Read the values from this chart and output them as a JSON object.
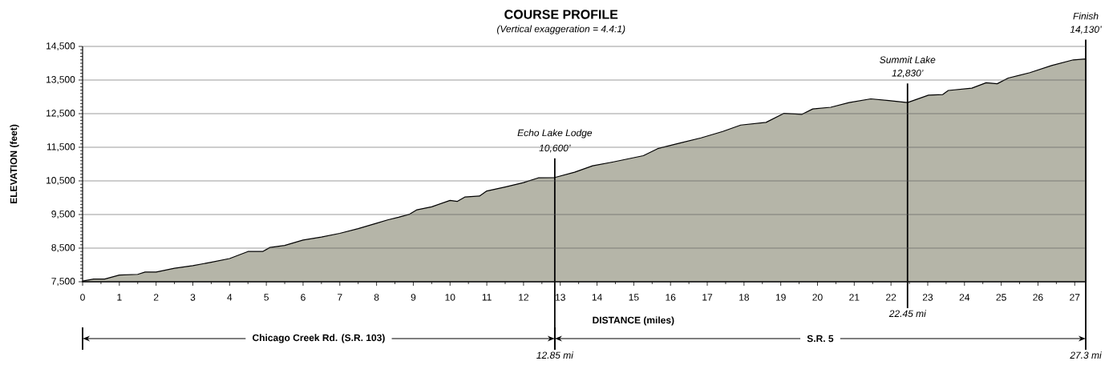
{
  "chart_data": {
    "type": "area",
    "title": "COURSE PROFILE",
    "subtitle": "(Vertical exaggeration = 4.4:1)",
    "xlabel": "DISTANCE (miles)",
    "ylabel": "ELEVATION (feet)",
    "x": [
      0,
      0.3,
      0.6,
      1.0,
      1.5,
      1.7,
      2.0,
      2.5,
      3.0,
      3.5,
      4.0,
      4.5,
      4.9,
      5.1,
      5.5,
      6.0,
      6.5,
      7.0,
      7.5,
      8.0,
      8.3,
      8.6,
      8.9,
      9.1,
      9.5,
      10.0,
      10.2,
      10.4,
      10.8,
      11.0,
      11.5,
      12.0,
      12.4,
      12.85,
      13.39,
      13.88,
      14.42,
      15.26,
      15.65,
      16.24,
      16.83,
      17.42,
      17.91,
      18.6,
      19.09,
      19.58,
      19.87,
      20.36,
      20.86,
      21.45,
      21.94,
      22.45,
      23.02,
      23.41,
      23.56,
      24.2,
      24.59,
      24.89,
      25.19,
      25.78,
      26.37,
      26.96,
      27.3
    ],
    "series": [
      {
        "color": "#b5b5a8",
        "values": [
          7520,
          7580,
          7580,
          7700,
          7720,
          7790,
          7790,
          7900,
          7980,
          8080,
          8190,
          8400,
          8400,
          8520,
          8580,
          8740,
          8830,
          8940,
          9080,
          9240,
          9340,
          9420,
          9510,
          9640,
          9730,
          9920,
          9890,
          10020,
          10050,
          10200,
          10320,
          10450,
          10590,
          10600,
          10760,
          10950,
          11060,
          11250,
          11460,
          11620,
          11780,
          11970,
          12160,
          12240,
          12510,
          12480,
          12640,
          12690,
          12830,
          12940,
          12890,
          12830,
          13050,
          13070,
          13190,
          13260,
          13420,
          13390,
          13560,
          13720,
          13930,
          14100,
          14130
        ]
      }
    ],
    "xlim": [
      0,
      27.3
    ],
    "ylim": [
      7500,
      14500
    ],
    "xticks": [
      0,
      1,
      2,
      3,
      4,
      5,
      6,
      7,
      8,
      9,
      10,
      11,
      12,
      13,
      14,
      15,
      16,
      17,
      18,
      19,
      20,
      21,
      22,
      23,
      24,
      25,
      26,
      27
    ],
    "yticks": [
      {
        "value": 7500,
        "label": "7,500"
      },
      {
        "value": 8500,
        "label": "8,500"
      },
      {
        "value": 9500,
        "label": "9,500"
      },
      {
        "value": 10500,
        "label": "10,500"
      },
      {
        "value": 11500,
        "label": "11,500"
      },
      {
        "value": 12500,
        "label": "12,500"
      },
      {
        "value": 13500,
        "label": "13,500"
      },
      {
        "value": 14500,
        "label": "14,500"
      }
    ],
    "grid": "y",
    "ref_lines": [
      {
        "axis": "x",
        "value": 12.85,
        "label": "12.85 mi"
      },
      {
        "axis": "x",
        "value": 22.45,
        "label": "22.45 mi"
      },
      {
        "axis": "x",
        "value": 27.3,
        "label": "27.3 mi"
      }
    ],
    "annotations": [
      "Echo Lake Lodge",
      "10,600’",
      "Summit Lake",
      "12,830’",
      "Finish",
      "14,130’",
      "Chicago Creek Rd. (S.R. 103)",
      "S.R. 5"
    ]
  }
}
